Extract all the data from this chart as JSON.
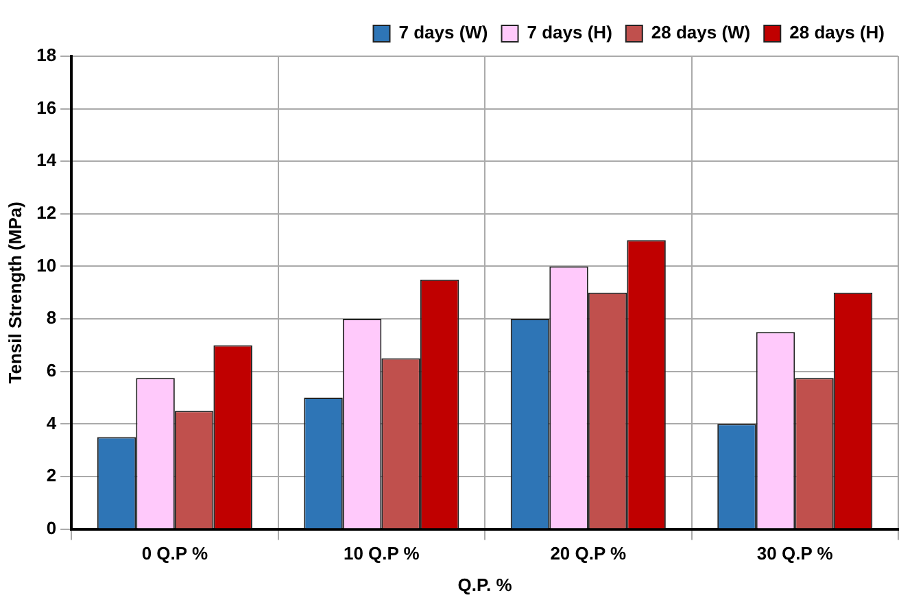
{
  "chart_data": {
    "type": "bar",
    "xlabel": "Q.P. %",
    "ylabel": "Tensil Strength (MPa)",
    "categories": [
      "0 Q.P %",
      "10 Q.P %",
      "20 Q.P %",
      "30 Q.P %"
    ],
    "series": [
      {
        "name": "7 days (W)",
        "color": "#2e75b6",
        "values": [
          3.5,
          5,
          8,
          4
        ]
      },
      {
        "name": "7 days (H)",
        "color": "#ffc9fb",
        "values": [
          5.75,
          8,
          10,
          7.5
        ]
      },
      {
        "name": "28 days (W)",
        "color": "#c0504d",
        "values": [
          4.5,
          6.5,
          9,
          5.75
        ]
      },
      {
        "name": "28 days (H)",
        "color": "#c00000",
        "values": [
          7,
          9.5,
          11,
          9
        ]
      }
    ],
    "ylim": [
      0,
      18
    ],
    "yticks": [
      0,
      2,
      4,
      6,
      8,
      10,
      12,
      14,
      16,
      18
    ],
    "grid": true,
    "legend": "top right"
  }
}
